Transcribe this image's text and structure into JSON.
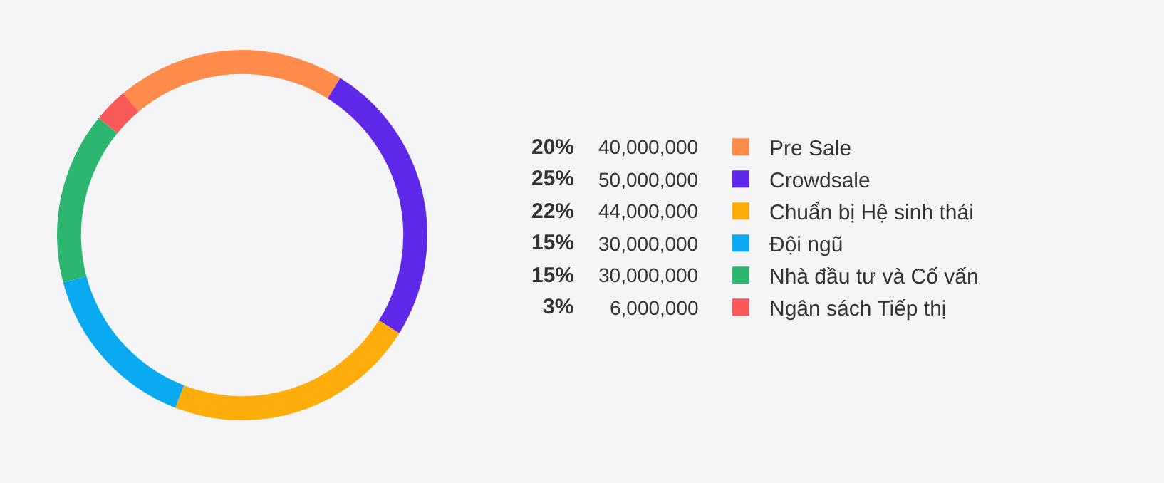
{
  "chart_data": {
    "type": "donut",
    "categories": [
      "Pre Sale",
      "Crowdsale",
      "Chuẩn bị Hệ sinh thái",
      "Đội ngũ",
      "Nhà đầu tư và Cố vấn",
      "Ngân sách Tiếp thị"
    ],
    "values": [
      20,
      25,
      22,
      15,
      15,
      3
    ],
    "annotations": [
      "20%",
      "40,000,000",
      "25%",
      "50,000,000",
      "22%",
      "44,000,000",
      "15%",
      "30,000,000",
      "15%",
      "30,000,000",
      "3%",
      "6,000,000"
    ],
    "colors": [
      "#ff8c4b",
      "#5f27e8",
      "#ffad0a",
      "#0aaaf0",
      "#2db670",
      "#f85a5a"
    ],
    "legend": "right"
  }
}
